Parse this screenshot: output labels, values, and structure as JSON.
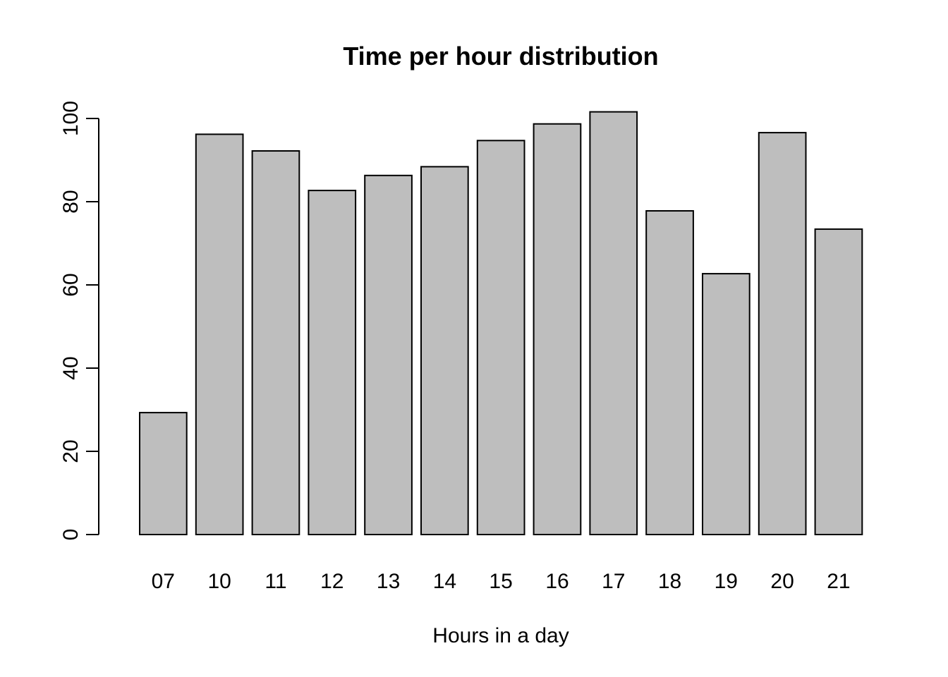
{
  "chart_data": {
    "type": "bar",
    "title": "Time per hour distribution",
    "xlabel": "Hours in a day",
    "ylabel": "",
    "categories": [
      "07",
      "10",
      "11",
      "12",
      "13",
      "14",
      "15",
      "16",
      "17",
      "18",
      "19",
      "20",
      "21"
    ],
    "values": [
      29.3,
      96.2,
      92.2,
      82.7,
      86.3,
      88.4,
      94.7,
      98.7,
      101.6,
      77.8,
      62.7,
      96.6,
      73.4
    ],
    "ylim": [
      0,
      100
    ],
    "y_ticks": [
      0,
      20,
      40,
      60,
      80,
      100
    ],
    "grid": false,
    "colors": {
      "bar_fill": "#bebebe",
      "bar_stroke": "#000000",
      "text": "#000000"
    }
  }
}
